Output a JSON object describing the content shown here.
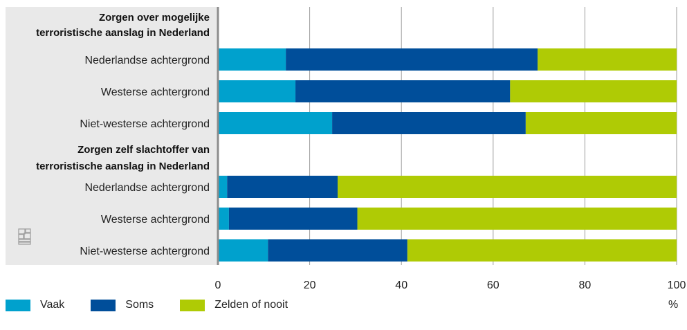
{
  "colors": {
    "vaak": "#00a1cd",
    "soms": "#004e9a",
    "zelden": "#afcb05",
    "panel_bg": "#e9e9e9",
    "axis": "#8c8c8c",
    "grid": "#9b9b9b",
    "logo": "#a0a0a0"
  },
  "icons": {
    "logo": "cbs-logo-icon"
  },
  "unit_label": "%",
  "chart_data": {
    "type": "bar",
    "orientation": "horizontal",
    "stacked": true,
    "xlim": [
      0,
      100
    ],
    "xticks": [
      0,
      20,
      40,
      60,
      80,
      100
    ],
    "grid": true,
    "legend_position": "bottom-left",
    "groups": [
      {
        "title": "Zorgen over mogelijke terroristische aanslag in Nederland",
        "title_lines": [
          "Zorgen over mogelijke",
          "terroristische aanslag in Nederland"
        ],
        "categories": [
          "Nederlandse achtergrond",
          "Westerse achtergrond",
          "Niet-westerse achtergrond"
        ]
      },
      {
        "title": "Zorgen zelf slachtoffer van terroristische aanslag in Nederland",
        "title_lines": [
          "Zorgen zelf slachtoffer van",
          "terroristische aanslag in Nederland"
        ],
        "categories": [
          "Nederlandse achtergrond",
          "Westerse achtergrond",
          "Niet-westerse achtergrond"
        ]
      }
    ],
    "series": [
      {
        "name": "Vaak",
        "color": "#00a1cd",
        "values": [
          14.8,
          16.9,
          24.9,
          2.0,
          2.4,
          10.9
        ]
      },
      {
        "name": "Soms",
        "color": "#004e9a",
        "values": [
          54.9,
          46.8,
          42.2,
          24.1,
          28.0,
          30.4
        ]
      },
      {
        "name": "Zelden of nooit",
        "color": "#afcb05",
        "values": [
          30.3,
          36.3,
          32.9,
          73.9,
          69.6,
          58.7
        ]
      }
    ]
  }
}
